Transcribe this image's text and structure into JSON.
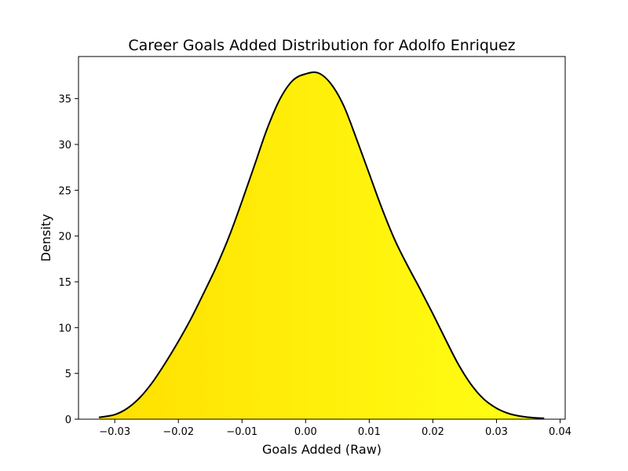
{
  "chart_data": {
    "type": "area",
    "title": "Career Goals Added Distribution for Adolfo Enriquez",
    "xlabel": "Goals Added (Raw)",
    "ylabel": "Density",
    "xlim": [
      -0.0357,
      0.0408
    ],
    "ylim": [
      0,
      39.6
    ],
    "x_ticks": [
      {
        "value": -0.03,
        "label": "−0.03"
      },
      {
        "value": -0.02,
        "label": "−0.02"
      },
      {
        "value": -0.01,
        "label": "−0.01"
      },
      {
        "value": 0.0,
        "label": "0.00"
      },
      {
        "value": 0.01,
        "label": "0.01"
      },
      {
        "value": 0.02,
        "label": "0.02"
      },
      {
        "value": 0.03,
        "label": "0.03"
      },
      {
        "value": 0.04,
        "label": "0.04"
      }
    ],
    "y_ticks": [
      {
        "value": 0,
        "label": "0"
      },
      {
        "value": 5,
        "label": "5"
      },
      {
        "value": 10,
        "label": "10"
      },
      {
        "value": 15,
        "label": "15"
      },
      {
        "value": 20,
        "label": "20"
      },
      {
        "value": 25,
        "label": "25"
      },
      {
        "value": 30,
        "label": "30"
      },
      {
        "value": 35,
        "label": "35"
      }
    ],
    "grid": false,
    "legend": "none",
    "colors": {
      "line": "#000000",
      "fill_left": "#ffe000",
      "fill_right": "#ffff14"
    },
    "series": [
      {
        "x": [
          -0.0325,
          -0.03,
          -0.028,
          -0.026,
          -0.024,
          -0.022,
          -0.02,
          -0.018,
          -0.016,
          -0.014,
          -0.012,
          -0.01,
          -0.008,
          -0.006,
          -0.004,
          -0.002,
          0.0,
          0.002,
          0.004,
          0.006,
          0.008,
          0.01,
          0.012,
          0.014,
          0.016,
          0.018,
          0.02,
          0.022,
          0.024,
          0.026,
          0.028,
          0.03,
          0.032,
          0.034,
          0.036,
          0.0375
        ],
        "y": [
          0.2,
          0.5,
          1.2,
          2.4,
          4.1,
          6.2,
          8.5,
          11.0,
          13.8,
          16.7,
          20.0,
          23.8,
          27.8,
          31.8,
          35.0,
          37.0,
          37.7,
          37.8,
          36.6,
          34.2,
          30.6,
          26.8,
          23.0,
          19.6,
          16.8,
          14.2,
          11.5,
          8.7,
          6.0,
          3.8,
          2.2,
          1.2,
          0.6,
          0.3,
          0.15,
          0.1
        ]
      }
    ]
  }
}
